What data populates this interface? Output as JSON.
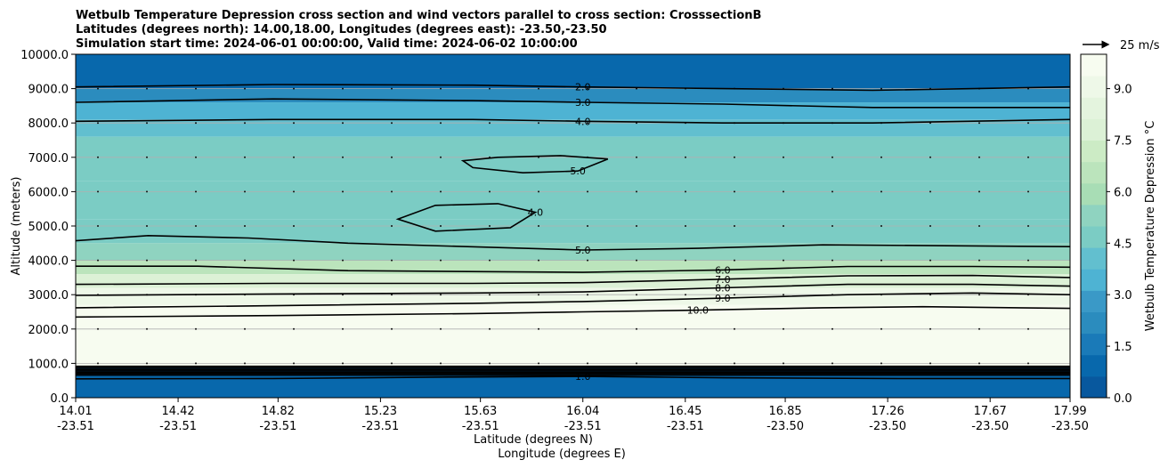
{
  "chart_data": {
    "type": "heatmap",
    "title_lines": [
      "Wetbulb Temperature Depression cross section and wind vectors parallel to cross section: CrosssectionB",
      "Latitudes (degrees north): 14.00,18.00, Longitudes (degrees east): -23.50,-23.50",
      "Simulation start time: 2024-06-01 00:00:00, Valid time: 2024-06-02 10:00:00"
    ],
    "ylabel": "Altitude (meters)",
    "xlabel_lines": [
      "Latitude (degrees N)",
      "Longitude (degrees E)"
    ],
    "ylim": [
      0,
      10000
    ],
    "y_ticks": [
      {
        "value": 0,
        "label": "0.0"
      },
      {
        "value": 1000,
        "label": "1000.0"
      },
      {
        "value": 2000,
        "label": "2000.0"
      },
      {
        "value": 3000,
        "label": "3000.0"
      },
      {
        "value": 4000,
        "label": "4000.0"
      },
      {
        "value": 5000,
        "label": "5000.0"
      },
      {
        "value": 6000,
        "label": "6000.0"
      },
      {
        "value": 7000,
        "label": "7000.0"
      },
      {
        "value": 8000,
        "label": "8000.0"
      },
      {
        "value": 9000,
        "label": "9000.0"
      },
      {
        "value": 10000,
        "label": "10000.0"
      }
    ],
    "x_range": [
      14.01,
      17.99
    ],
    "x_ticks": [
      {
        "lat": 14.01,
        "lat_label": "14.01",
        "lon_label": "-23.51"
      },
      {
        "lat": 14.42,
        "lat_label": "14.42",
        "lon_label": "-23.51"
      },
      {
        "lat": 14.82,
        "lat_label": "14.82",
        "lon_label": "-23.51"
      },
      {
        "lat": 15.23,
        "lat_label": "15.23",
        "lon_label": "-23.51"
      },
      {
        "lat": 15.63,
        "lat_label": "15.63",
        "lon_label": "-23.51"
      },
      {
        "lat": 16.04,
        "lat_label": "16.04",
        "lon_label": "-23.51"
      },
      {
        "lat": 16.45,
        "lat_label": "16.45",
        "lon_label": "-23.51"
      },
      {
        "lat": 16.85,
        "lat_label": "16.85",
        "lon_label": "-23.50"
      },
      {
        "lat": 17.26,
        "lat_label": "17.26",
        "lon_label": "-23.50"
      },
      {
        "lat": 17.67,
        "lat_label": "17.67",
        "lon_label": "-23.50"
      },
      {
        "lat": 17.99,
        "lat_label": "17.99",
        "lon_label": "-23.50"
      }
    ],
    "colorbar": {
      "label": "Wetbulb Temperature Depression °C",
      "range": [
        0,
        10
      ],
      "ticks": [
        {
          "value": 0,
          "label": "0.0"
        },
        {
          "value": 1.5,
          "label": "1.5"
        },
        {
          "value": 3,
          "label": "3.0"
        },
        {
          "value": 4.5,
          "label": "4.5"
        },
        {
          "value": 6,
          "label": "6.0"
        },
        {
          "value": 7.5,
          "label": "7.5"
        },
        {
          "value": 9,
          "label": "9.0"
        }
      ],
      "palette": [
        "#08589e",
        "#0868ac",
        "#1a7ab8",
        "#2b8cbe",
        "#3a99c7",
        "#4eb3d3",
        "#62bfcf",
        "#7bccc4",
        "#8fd3c0",
        "#a8ddb5",
        "#bbe4bc",
        "#ccebc5",
        "#dcf1d6",
        "#e4f4de",
        "#eef8e8",
        "#f7fcf0"
      ]
    },
    "wind_reference": {
      "label": "25 m/s"
    },
    "contour_levels": [
      {
        "value": 1,
        "label": "1.0"
      },
      {
        "value": 2,
        "label": "2.0"
      },
      {
        "value": 3,
        "label": "3.0"
      },
      {
        "value": 4,
        "label": "4.0"
      },
      {
        "value": 5,
        "label": "5.0"
      },
      {
        "value": 6,
        "label": "6.0"
      },
      {
        "value": 7,
        "label": "7.0"
      },
      {
        "value": 8,
        "label": "8.0"
      },
      {
        "value": 9,
        "label": "9.0"
      },
      {
        "value": 10,
        "label": "10.0"
      }
    ],
    "field_bands": [
      {
        "alt_low": 9000,
        "alt_high": 10000,
        "value": 0.8
      },
      {
        "alt_low": 8600,
        "alt_high": 9000,
        "value": 2.3
      },
      {
        "alt_low": 8100,
        "alt_high": 8600,
        "value": 3.4
      },
      {
        "alt_low": 7600,
        "alt_high": 8100,
        "value": 4.3
      },
      {
        "alt_low": 6300,
        "alt_high": 7600,
        "value": 4.9
      },
      {
        "alt_low": 5200,
        "alt_high": 6300,
        "value": 4.4
      },
      {
        "alt_low": 4500,
        "alt_high": 5200,
        "value": 4.6
      },
      {
        "alt_low": 4000,
        "alt_high": 4500,
        "value": 5.4
      },
      {
        "alt_low": 3600,
        "alt_high": 4000,
        "value": 6.4
      },
      {
        "alt_low": 3200,
        "alt_high": 3600,
        "value": 7.6
      },
      {
        "alt_low": 2700,
        "alt_high": 3200,
        "value": 9.0
      },
      {
        "alt_low": 900,
        "alt_high": 2700,
        "value": 10.0
      },
      {
        "alt_low": 0,
        "alt_high": 900,
        "value": 0.9
      }
    ],
    "contours": [
      {
        "level": "10.0",
        "points": [
          [
            14.01,
            2350
          ],
          [
            14.8,
            2390
          ],
          [
            15.6,
            2450
          ],
          [
            16.04,
            2500
          ],
          [
            16.5,
            2550
          ],
          [
            17.0,
            2620
          ],
          [
            17.4,
            2650
          ],
          [
            17.99,
            2600
          ]
        ]
      },
      {
        "level": "9.0",
        "points": [
          [
            14.01,
            2620
          ],
          [
            14.8,
            2680
          ],
          [
            15.6,
            2750
          ],
          [
            16.04,
            2800
          ],
          [
            16.6,
            2900
          ],
          [
            17.1,
            3000
          ],
          [
            17.6,
            3050
          ],
          [
            17.99,
            3000
          ]
        ]
      },
      {
        "level": "8.0",
        "points": [
          [
            14.01,
            2980
          ],
          [
            14.8,
            3020
          ],
          [
            15.6,
            3050
          ],
          [
            16.04,
            3080
          ],
          [
            16.6,
            3200
          ],
          [
            17.1,
            3300
          ],
          [
            17.6,
            3300
          ],
          [
            17.99,
            3250
          ]
        ]
      },
      {
        "level": "7.0",
        "points": [
          [
            14.01,
            3300
          ],
          [
            14.8,
            3330
          ],
          [
            15.6,
            3330
          ],
          [
            16.04,
            3350
          ],
          [
            16.6,
            3450
          ],
          [
            17.1,
            3550
          ],
          [
            17.6,
            3560
          ],
          [
            17.99,
            3500
          ]
        ]
      },
      {
        "level": "6.0",
        "points": [
          [
            14.01,
            3830
          ],
          [
            14.5,
            3830
          ],
          [
            15.1,
            3700
          ],
          [
            16.04,
            3650
          ],
          [
            16.6,
            3720
          ],
          [
            17.1,
            3820
          ],
          [
            17.6,
            3820
          ],
          [
            17.99,
            3800
          ]
        ]
      },
      {
        "level": "5.0",
        "points": [
          [
            14.01,
            4570
          ],
          [
            14.3,
            4720
          ],
          [
            14.7,
            4650
          ],
          [
            15.1,
            4500
          ],
          [
            16.04,
            4300
          ],
          [
            16.5,
            4350
          ],
          [
            17.0,
            4450
          ],
          [
            17.99,
            4400
          ]
        ]
      },
      {
        "level": "4.0",
        "points": [
          [
            14.01,
            8050
          ],
          [
            14.8,
            8100
          ],
          [
            15.6,
            8100
          ],
          [
            16.04,
            8050
          ],
          [
            16.6,
            8000
          ],
          [
            17.2,
            8000
          ],
          [
            17.99,
            8100
          ]
        ]
      },
      {
        "level": "3.0",
        "points": [
          [
            14.01,
            8600
          ],
          [
            14.8,
            8700
          ],
          [
            15.6,
            8650
          ],
          [
            16.04,
            8600
          ],
          [
            16.6,
            8550
          ],
          [
            17.2,
            8450
          ],
          [
            17.99,
            8450
          ]
        ]
      },
      {
        "level": "2.0",
        "points": [
          [
            14.01,
            9050
          ],
          [
            14.8,
            9120
          ],
          [
            15.6,
            9100
          ],
          [
            16.04,
            9050
          ],
          [
            16.6,
            9000
          ],
          [
            17.2,
            8950
          ],
          [
            17.99,
            9050
          ]
        ]
      },
      {
        "level": "1.0",
        "points": [
          [
            14.01,
            550
          ],
          [
            14.8,
            560
          ],
          [
            15.5,
            600
          ],
          [
            16.04,
            620
          ],
          [
            16.6,
            580
          ],
          [
            17.3,
            560
          ],
          [
            17.99,
            560
          ]
        ]
      }
    ],
    "closed_contours": [
      {
        "level": "5.0",
        "points": [
          [
            15.56,
            6900
          ],
          [
            15.7,
            7000
          ],
          [
            15.95,
            7050
          ],
          [
            16.14,
            6950
          ],
          [
            16.02,
            6600
          ],
          [
            15.8,
            6550
          ],
          [
            15.6,
            6700
          ],
          [
            15.56,
            6900
          ]
        ]
      },
      {
        "level": "4.0",
        "points": [
          [
            15.3,
            5200
          ],
          [
            15.45,
            5600
          ],
          [
            15.7,
            5650
          ],
          [
            15.85,
            5400
          ],
          [
            15.75,
            4950
          ],
          [
            15.45,
            4850
          ],
          [
            15.3,
            5200
          ]
        ]
      }
    ]
  }
}
